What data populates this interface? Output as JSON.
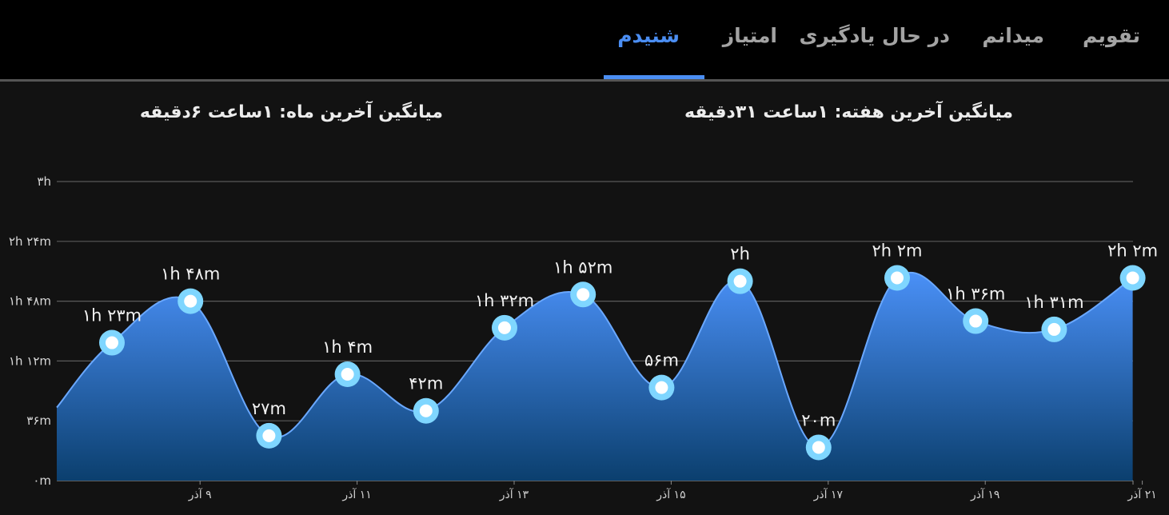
{
  "tabs": [
    {
      "label": "تقویم",
      "active": false
    },
    {
      "label": "میدانم",
      "active": false
    },
    {
      "label": "در حال یادگیری",
      "active": false
    },
    {
      "label": "امتیاز",
      "active": false
    },
    {
      "label": "شنیدم",
      "active": true
    }
  ],
  "summary": {
    "week": "میانگین آخرین هفته: ۱ساعت ۳۱دقیقه",
    "month": "میانگین آخرین ماه: ۱ساعت ۶دقیقه"
  },
  "colors": {
    "accent": "#4b8ef3",
    "area_top": "#4a90f7",
    "area_bottom": "#0b3f6e",
    "marker_ring": "#7fd6ff"
  },
  "chart_data": {
    "type": "area",
    "ylim": [
      0,
      180
    ],
    "y_unit": "minutes",
    "y_ticks": [
      {
        "value": 0,
        "label": "۰m"
      },
      {
        "value": 36,
        "label": "۳۶m"
      },
      {
        "value": 72,
        "label": "۱h ۱۲m"
      },
      {
        "value": 108,
        "label": "۱h ۴۸m"
      },
      {
        "value": 144,
        "label": "۲h ۲۴m"
      },
      {
        "value": 180,
        "label": "۳h"
      }
    ],
    "x_tick_labels": [
      {
        "index": 1,
        "label": "۹ آذر"
      },
      {
        "index": 3,
        "label": "۱۱ آذر"
      },
      {
        "index": 5,
        "label": "۱۳ آذر"
      },
      {
        "index": 7,
        "label": "۱۵ آذر"
      },
      {
        "index": 9,
        "label": "۱۷ آذر"
      },
      {
        "index": 11,
        "label": "۱۹ آذر"
      },
      {
        "index": 13,
        "label": "۲۱ آذر"
      }
    ],
    "start_value": 44,
    "values": [
      83,
      108,
      27,
      64,
      42,
      92,
      112,
      56,
      120,
      20,
      122,
      96,
      91,
      122
    ],
    "data_labels": [
      "۱h ۲۳m",
      "۱h ۴۸m",
      "۲۷m",
      "۱h ۴m",
      "۴۲m",
      "۱h ۳۲m",
      "۱h ۵۲m",
      "۵۶m",
      "۲h",
      "۲۰m",
      "۲h ۲m",
      "۱h ۳۶m",
      "۱h ۳۱m",
      "۲h ۲m"
    ],
    "grid": true
  }
}
